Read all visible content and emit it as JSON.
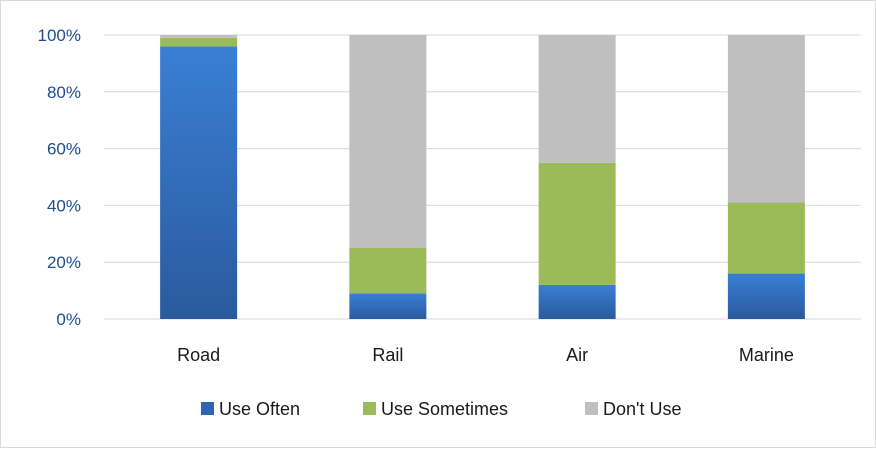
{
  "chart_data": {
    "type": "bar",
    "stacked": true,
    "normalized": true,
    "categories": [
      "Road",
      "Rail",
      "Air",
      "Marine"
    ],
    "series": [
      {
        "name": "Use Often",
        "values": [
          96,
          9,
          12,
          16
        ],
        "color": "#2e66b5"
      },
      {
        "name": "Use Sometimes",
        "values": [
          3,
          16,
          43,
          25
        ],
        "color": "#9bbb59"
      },
      {
        "name": "Don't Use",
        "values": [
          1,
          75,
          45,
          59
        ],
        "color": "#bfbfbf"
      }
    ],
    "ylim": [
      0,
      100
    ],
    "yticks": [
      "0%",
      "20%",
      "40%",
      "60%",
      "80%",
      "100%"
    ],
    "grid": true,
    "legend": "bottom"
  }
}
